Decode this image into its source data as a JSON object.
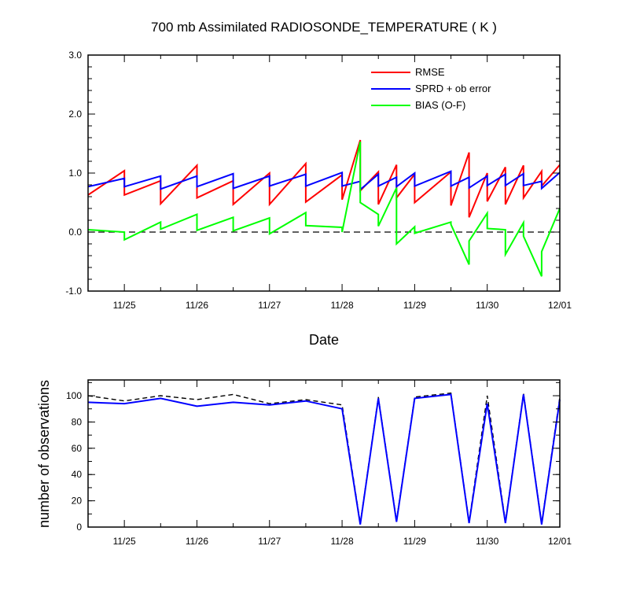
{
  "chart_data": [
    {
      "type": "line",
      "title": "700 mb Assimilated RADIOSONDE_TEMPERATURE ( K )",
      "xlabel": "Date",
      "ylabel": "",
      "x_ticks": [
        "11/25",
        "11/26",
        "11/27",
        "11/28",
        "11/29",
        "11/30",
        "12/01"
      ],
      "y_ticks": [
        "-1.0",
        "0.0",
        "1.0",
        "2.0",
        "3.0"
      ],
      "xlim": [
        -0.5,
        6.0
      ],
      "ylim": [
        -1.0,
        3.0
      ],
      "reference_line": 0.0,
      "legend_position": "top-right",
      "series": [
        {
          "name": "RMSE",
          "color": "#ff0000",
          "points": [
            [
              -0.5,
              0.63
            ],
            [
              0,
              1.04
            ],
            [
              0,
              0.63
            ],
            [
              0.5,
              0.87
            ],
            [
              0.5,
              0.48
            ],
            [
              1,
              1.13
            ],
            [
              1,
              0.58
            ],
            [
              1.5,
              0.87
            ],
            [
              1.5,
              0.47
            ],
            [
              2,
              1.0
            ],
            [
              2,
              0.47
            ],
            [
              2.5,
              1.16
            ],
            [
              2.5,
              0.51
            ],
            [
              3,
              0.97
            ],
            [
              3,
              0.55
            ],
            [
              3.25,
              1.56
            ],
            [
              3.25,
              0.7
            ],
            [
              3.5,
              1.02
            ],
            [
              3.5,
              0.47
            ],
            [
              3.75,
              1.14
            ],
            [
              3.75,
              0.58
            ],
            [
              4,
              0.98
            ],
            [
              4,
              0.5
            ],
            [
              4.5,
              1.02
            ],
            [
              4.5,
              0.45
            ],
            [
              4.75,
              1.35
            ],
            [
              4.75,
              0.25
            ],
            [
              5,
              1.0
            ],
            [
              5,
              0.52
            ],
            [
              5.25,
              1.1
            ],
            [
              5.25,
              0.47
            ],
            [
              5.5,
              1.13
            ],
            [
              5.5,
              0.58
            ],
            [
              5.75,
              1.03
            ],
            [
              5.75,
              0.78
            ],
            [
              6,
              1.14
            ]
          ]
        },
        {
          "name": "SPRD + ob error",
          "color": "#0000ff",
          "points": [
            [
              -0.5,
              0.77
            ],
            [
              0,
              0.91
            ],
            [
              0,
              0.77
            ],
            [
              0.5,
              0.95
            ],
            [
              0.5,
              0.73
            ],
            [
              1,
              0.95
            ],
            [
              1,
              0.77
            ],
            [
              1.5,
              0.99
            ],
            [
              1.5,
              0.74
            ],
            [
              2,
              0.95
            ],
            [
              2,
              0.78
            ],
            [
              2.5,
              0.98
            ],
            [
              2.5,
              0.78
            ],
            [
              3,
              1.01
            ],
            [
              3,
              0.78
            ],
            [
              3.25,
              0.86
            ],
            [
              3.25,
              0.72
            ],
            [
              3.5,
              0.98
            ],
            [
              3.5,
              0.78
            ],
            [
              3.75,
              0.93
            ],
            [
              3.75,
              0.77
            ],
            [
              4,
              1.0
            ],
            [
              4,
              0.78
            ],
            [
              4.5,
              1.03
            ],
            [
              4.5,
              0.78
            ],
            [
              4.75,
              0.93
            ],
            [
              4.75,
              0.75
            ],
            [
              5,
              0.95
            ],
            [
              5,
              0.79
            ],
            [
              5.25,
              0.98
            ],
            [
              5.25,
              0.79
            ],
            [
              5.5,
              0.99
            ],
            [
              5.5,
              0.79
            ],
            [
              5.75,
              0.86
            ],
            [
              5.75,
              0.74
            ],
            [
              6,
              1.01
            ]
          ]
        },
        {
          "name": "BIAS (O-F)",
          "color": "#00ff00",
          "points": [
            [
              -0.5,
              0.04
            ],
            [
              0,
              0.0
            ],
            [
              0,
              -0.13
            ],
            [
              0.5,
              0.17
            ],
            [
              0.5,
              0.05
            ],
            [
              1,
              0.3
            ],
            [
              1,
              0.03
            ],
            [
              1.5,
              0.25
            ],
            [
              1.5,
              0.02
            ],
            [
              2,
              0.24
            ],
            [
              2,
              -0.03
            ],
            [
              2.5,
              0.33
            ],
            [
              2.5,
              0.11
            ],
            [
              3,
              0.08
            ],
            [
              3,
              0.0
            ],
            [
              3.25,
              1.53
            ],
            [
              3.25,
              0.5
            ],
            [
              3.5,
              0.3
            ],
            [
              3.5,
              0.1
            ],
            [
              3.75,
              0.75
            ],
            [
              3.75,
              -0.2
            ],
            [
              4,
              0.09
            ],
            [
              4,
              -0.02
            ],
            [
              4.5,
              0.17
            ],
            [
              4.5,
              0.13
            ],
            [
              4.75,
              -0.55
            ],
            [
              4.75,
              -0.15
            ],
            [
              5,
              0.32
            ],
            [
              5,
              0.06
            ],
            [
              5.25,
              0.04
            ],
            [
              5.25,
              -0.38
            ],
            [
              5.5,
              0.16
            ],
            [
              5.5,
              -0.07
            ],
            [
              5.75,
              -0.75
            ],
            [
              5.75,
              -0.33
            ],
            [
              6,
              0.4
            ]
          ]
        }
      ]
    },
    {
      "type": "line",
      "title": "",
      "xlabel": "",
      "ylabel": "number of observations",
      "x_ticks": [
        "11/25",
        "11/26",
        "11/27",
        "11/28",
        "11/29",
        "11/30",
        "12/01"
      ],
      "y_ticks": [
        "0",
        "20",
        "40",
        "60",
        "80",
        "100"
      ],
      "xlim": [
        -0.5,
        6.0
      ],
      "ylim": [
        0,
        112
      ],
      "series": [
        {
          "color": "#000000",
          "dashed": true,
          "points": [
            [
              -0.5,
              100
            ],
            [
              0,
              96
            ],
            [
              0.5,
              100
            ],
            [
              1,
              97
            ],
            [
              1.5,
              101
            ],
            [
              2,
              94
            ],
            [
              2.5,
              97
            ],
            [
              3,
              93
            ],
            [
              3.25,
              3
            ],
            [
              3.5,
              99
            ],
            [
              3.75,
              5
            ],
            [
              4,
              99
            ],
            [
              4.5,
              102
            ],
            [
              4.75,
              4
            ],
            [
              5,
              100
            ],
            [
              5.25,
              4
            ],
            [
              5.5,
              102
            ],
            [
              5.75,
              3
            ],
            [
              6,
              99
            ]
          ]
        },
        {
          "color": "#0000ff",
          "points": [
            [
              -0.5,
              95
            ],
            [
              0,
              94
            ],
            [
              0.5,
              98
            ],
            [
              1,
              92
            ],
            [
              1.5,
              95
            ],
            [
              2,
              93
            ],
            [
              2.5,
              96
            ],
            [
              3,
              90
            ],
            [
              3.25,
              2
            ],
            [
              3.5,
              98
            ],
            [
              3.75,
              4
            ],
            [
              4,
              98
            ],
            [
              4.5,
              101
            ],
            [
              4.75,
              3
            ],
            [
              5,
              94
            ],
            [
              5.25,
              3
            ],
            [
              5.5,
              101
            ],
            [
              5.75,
              2
            ],
            [
              6,
              97
            ]
          ]
        }
      ]
    }
  ]
}
